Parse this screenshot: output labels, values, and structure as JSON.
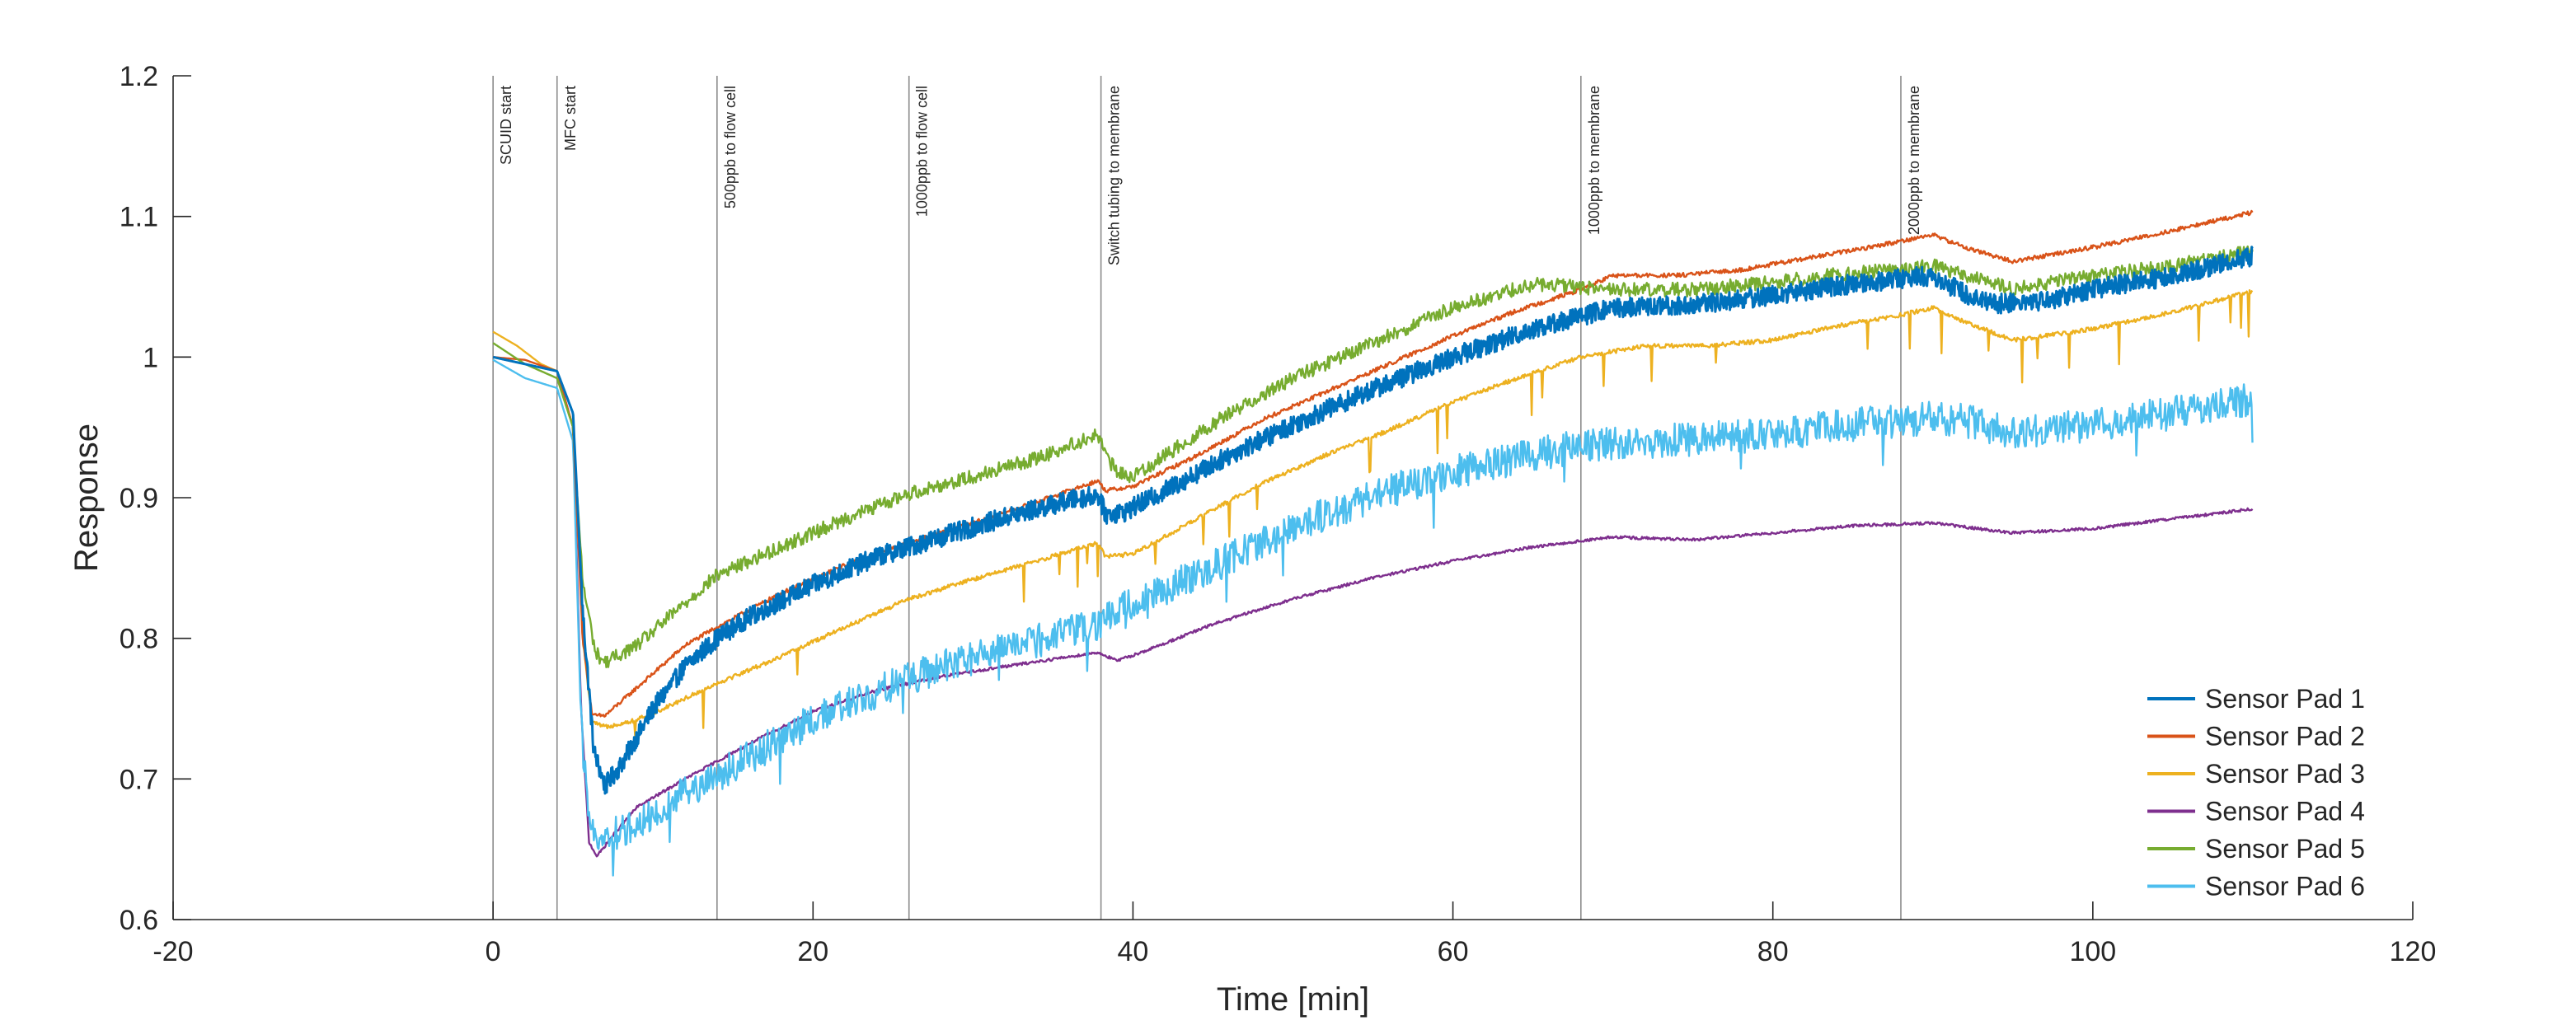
{
  "chart_data": {
    "type": "line",
    "title": "",
    "xlabel": "Time [min]",
    "ylabel": "Response",
    "xlim": [
      -20,
      120
    ],
    "ylim": [
      0.6,
      1.2
    ],
    "xticks": [
      -20,
      0,
      20,
      40,
      60,
      80,
      100,
      120
    ],
    "yticks": [
      0.6,
      0.7,
      0.8,
      0.9,
      1,
      1.1,
      1.2
    ],
    "xtick_labels": [
      "-20",
      "0",
      "20",
      "40",
      "60",
      "80",
      "100",
      "120"
    ],
    "ytick_labels": [
      "0.6",
      "0.7",
      "0.8",
      "0.9",
      "1",
      "1.1",
      "1.2"
    ],
    "grid": false,
    "legend_position": "bottom-right",
    "events": [
      {
        "x": 0,
        "label": "SCUID start"
      },
      {
        "x": 4,
        "label": "MFC start"
      },
      {
        "x": 14,
        "label": "500ppb to flow cell"
      },
      {
        "x": 26,
        "label": "1000ppb to flow cell"
      },
      {
        "x": 38,
        "label": "Switch tubing to membrane"
      },
      {
        "x": 68,
        "label": "1000ppb to membrane"
      },
      {
        "x": 88,
        "label": "2000ppb to membrane"
      }
    ],
    "series": [
      {
        "name": "Sensor Pad 1",
        "color": "#0072BD",
        "noise": 0.007,
        "points": [
          [
            0,
            1.0
          ],
          [
            2,
            0.995
          ],
          [
            4,
            0.99
          ],
          [
            5,
            0.96
          ],
          [
            5.6,
            0.82
          ],
          [
            6.3,
            0.72
          ],
          [
            7,
            0.695
          ],
          [
            8,
            0.71
          ],
          [
            10,
            0.75
          ],
          [
            12,
            0.78
          ],
          [
            14,
            0.8
          ],
          [
            16,
            0.815
          ],
          [
            20,
            0.838
          ],
          [
            24,
            0.858
          ],
          [
            28,
            0.872
          ],
          [
            32,
            0.886
          ],
          [
            36,
            0.898
          ],
          [
            37.8,
            0.902
          ],
          [
            38.3,
            0.888
          ],
          [
            39.5,
            0.89
          ],
          [
            42,
            0.905
          ],
          [
            46,
            0.93
          ],
          [
            50,
            0.952
          ],
          [
            55,
            0.977
          ],
          [
            60,
            1.0
          ],
          [
            65,
            1.02
          ],
          [
            70,
            1.035
          ],
          [
            75,
            1.037
          ],
          [
            80,
            1.044
          ],
          [
            85,
            1.052
          ],
          [
            88,
            1.056
          ],
          [
            90,
            1.058
          ],
          [
            92,
            1.045
          ],
          [
            94,
            1.038
          ],
          [
            97,
            1.04
          ],
          [
            100,
            1.048
          ],
          [
            105,
            1.058
          ],
          [
            110,
            1.072
          ]
        ]
      },
      {
        "name": "Sensor Pad 2",
        "color": "#D95319",
        "noise": 0.0015,
        "points": [
          [
            0,
            1.0
          ],
          [
            2,
            0.998
          ],
          [
            4,
            0.99
          ],
          [
            5,
            0.95
          ],
          [
            5.6,
            0.8
          ],
          [
            6.2,
            0.745
          ],
          [
            7,
            0.745
          ],
          [
            8,
            0.755
          ],
          [
            10,
            0.775
          ],
          [
            12,
            0.795
          ],
          [
            14,
            0.808
          ],
          [
            18,
            0.832
          ],
          [
            22,
            0.852
          ],
          [
            26,
            0.868
          ],
          [
            30,
            0.882
          ],
          [
            34,
            0.897
          ],
          [
            37.8,
            0.912
          ],
          [
            38.3,
            0.905
          ],
          [
            40,
            0.908
          ],
          [
            44,
            0.93
          ],
          [
            48,
            0.955
          ],
          [
            52,
            0.975
          ],
          [
            56,
            0.995
          ],
          [
            60,
            1.015
          ],
          [
            64,
            1.033
          ],
          [
            68,
            1.048
          ],
          [
            70,
            1.058
          ],
          [
            74,
            1.058
          ],
          [
            78,
            1.062
          ],
          [
            82,
            1.07
          ],
          [
            86,
            1.078
          ],
          [
            90,
            1.087
          ],
          [
            92,
            1.078
          ],
          [
            95,
            1.068
          ],
          [
            100,
            1.078
          ],
          [
            105,
            1.09
          ],
          [
            110,
            1.103
          ]
        ]
      },
      {
        "name": "Sensor Pad 3",
        "color": "#EDB120",
        "noise": 0.0015,
        "points": [
          [
            0,
            1.018
          ],
          [
            1.5,
            1.008
          ],
          [
            3,
            0.995
          ],
          [
            4,
            0.99
          ],
          [
            5,
            0.96
          ],
          [
            5.6,
            0.8
          ],
          [
            6.2,
            0.74
          ],
          [
            7,
            0.737
          ],
          [
            9,
            0.742
          ],
          [
            11,
            0.752
          ],
          [
            14,
            0.768
          ],
          [
            18,
            0.787
          ],
          [
            22,
            0.808
          ],
          [
            26,
            0.828
          ],
          [
            30,
            0.842
          ],
          [
            34,
            0.855
          ],
          [
            37.8,
            0.868
          ],
          [
            38.3,
            0.858
          ],
          [
            40,
            0.86
          ],
          [
            44,
            0.885
          ],
          [
            48,
            0.91
          ],
          [
            52,
            0.93
          ],
          [
            56,
            0.948
          ],
          [
            60,
            0.968
          ],
          [
            64,
            0.985
          ],
          [
            68,
            1.0
          ],
          [
            72,
            1.008
          ],
          [
            76,
            1.008
          ],
          [
            80,
            1.012
          ],
          [
            84,
            1.022
          ],
          [
            88,
            1.03
          ],
          [
            90,
            1.035
          ],
          [
            92,
            1.025
          ],
          [
            95,
            1.012
          ],
          [
            100,
            1.02
          ],
          [
            105,
            1.032
          ],
          [
            110,
            1.047
          ]
        ]
      },
      {
        "name": "Sensor Pad 4",
        "color": "#7E2F8E",
        "noise": 0.001,
        "points": [
          [
            0,
            1.0
          ],
          [
            2,
            0.995
          ],
          [
            4,
            0.99
          ],
          [
            5,
            0.95
          ],
          [
            5.5,
            0.75
          ],
          [
            6,
            0.655
          ],
          [
            6.5,
            0.645
          ],
          [
            7.5,
            0.66
          ],
          [
            9,
            0.68
          ],
          [
            12,
            0.7
          ],
          [
            16,
            0.725
          ],
          [
            20,
            0.748
          ],
          [
            24,
            0.763
          ],
          [
            28,
            0.773
          ],
          [
            32,
            0.78
          ],
          [
            37.8,
            0.79
          ],
          [
            39,
            0.784
          ],
          [
            41,
            0.792
          ],
          [
            45,
            0.81
          ],
          [
            50,
            0.828
          ],
          [
            55,
            0.843
          ],
          [
            60,
            0.855
          ],
          [
            65,
            0.865
          ],
          [
            70,
            0.872
          ],
          [
            75,
            0.87
          ],
          [
            80,
            0.875
          ],
          [
            85,
            0.88
          ],
          [
            90,
            0.882
          ],
          [
            95,
            0.875
          ],
          [
            100,
            0.878
          ],
          [
            105,
            0.885
          ],
          [
            110,
            0.892
          ]
        ]
      },
      {
        "name": "Sensor Pad 5",
        "color": "#77AC30",
        "noise": 0.005,
        "points": [
          [
            0,
            1.01
          ],
          [
            2,
            0.995
          ],
          [
            4,
            0.985
          ],
          [
            5,
            0.95
          ],
          [
            5.6,
            0.84
          ],
          [
            6.4,
            0.79
          ],
          [
            7,
            0.783
          ],
          [
            9,
            0.795
          ],
          [
            12,
            0.825
          ],
          [
            14,
            0.845
          ],
          [
            18,
            0.865
          ],
          [
            22,
            0.885
          ],
          [
            26,
            0.903
          ],
          [
            30,
            0.915
          ],
          [
            34,
            0.928
          ],
          [
            37.8,
            0.945
          ],
          [
            38.3,
            0.93
          ],
          [
            39,
            0.918
          ],
          [
            40,
            0.915
          ],
          [
            42,
            0.93
          ],
          [
            46,
            0.96
          ],
          [
            50,
            0.985
          ],
          [
            55,
            1.01
          ],
          [
            60,
            1.035
          ],
          [
            65,
            1.052
          ],
          [
            70,
            1.048
          ],
          [
            75,
            1.048
          ],
          [
            80,
            1.053
          ],
          [
            85,
            1.06
          ],
          [
            88,
            1.062
          ],
          [
            90,
            1.065
          ],
          [
            92,
            1.058
          ],
          [
            95,
            1.048
          ],
          [
            100,
            1.058
          ],
          [
            105,
            1.065
          ],
          [
            110,
            1.075
          ]
        ]
      },
      {
        "name": "Sensor Pad 6",
        "color": "#4DBEEE",
        "noise": 0.012,
        "points": [
          [
            0,
            0.998
          ],
          [
            2,
            0.985
          ],
          [
            4,
            0.978
          ],
          [
            5,
            0.94
          ],
          [
            5.5,
            0.74
          ],
          [
            6,
            0.665
          ],
          [
            7,
            0.658
          ],
          [
            9,
            0.668
          ],
          [
            12,
            0.69
          ],
          [
            16,
            0.715
          ],
          [
            20,
            0.742
          ],
          [
            24,
            0.762
          ],
          [
            28,
            0.78
          ],
          [
            32,
            0.792
          ],
          [
            37.8,
            0.81
          ],
          [
            40,
            0.825
          ],
          [
            44,
            0.845
          ],
          [
            48,
            0.868
          ],
          [
            52,
            0.888
          ],
          [
            56,
            0.905
          ],
          [
            60,
            0.918
          ],
          [
            64,
            0.928
          ],
          [
            68,
            0.937
          ],
          [
            72,
            0.94
          ],
          [
            76,
            0.942
          ],
          [
            80,
            0.945
          ],
          [
            85,
            0.952
          ],
          [
            90,
            0.957
          ],
          [
            92,
            0.955
          ],
          [
            95,
            0.945
          ],
          [
            100,
            0.952
          ],
          [
            105,
            0.96
          ],
          [
            110,
            0.97
          ]
        ]
      }
    ]
  }
}
